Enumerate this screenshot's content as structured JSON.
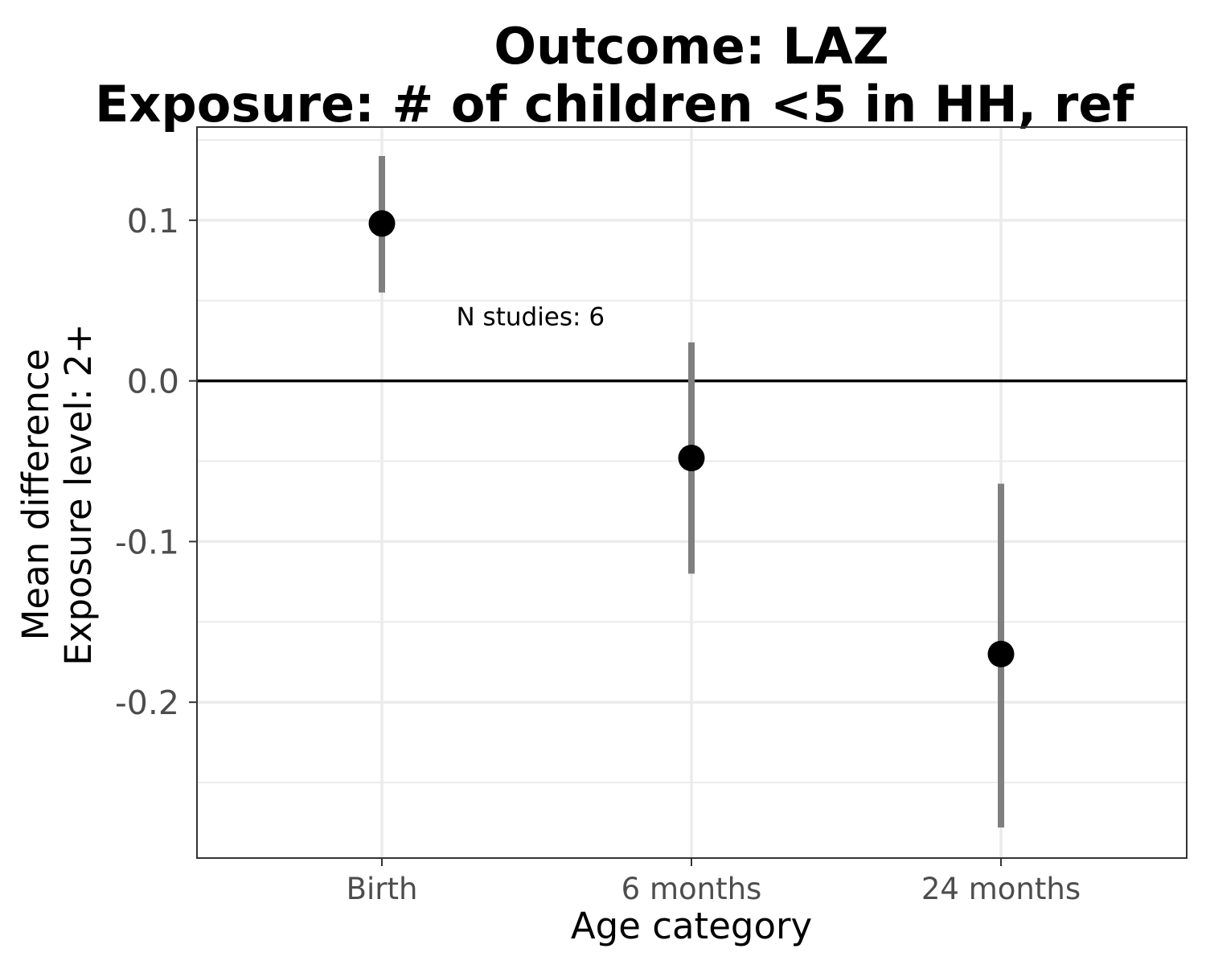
{
  "chart_data": {
    "type": "scatter",
    "title_lines": [
      "Outcome: LAZ",
      "Exposure: # of children <5 in HH, ref"
    ],
    "xlabel": "Age category",
    "ylabel_lines": [
      "Mean difference",
      "Exposure level: 2+"
    ],
    "categories": [
      "Birth",
      "6 months",
      "24 months"
    ],
    "estimates": [
      0.098,
      -0.048,
      -0.17
    ],
    "ci_lower": [
      0.055,
      -0.12,
      -0.278
    ],
    "ci_upper": [
      0.14,
      0.024,
      -0.064
    ],
    "yticks": [
      0.1,
      0.0,
      -0.1,
      -0.2
    ],
    "ytick_labels": [
      "0.1",
      "0.0",
      "-0.1",
      "-0.2"
    ],
    "ylim": [
      -0.297,
      0.158
    ],
    "reference_line": 0,
    "annotation": "N studies: 6",
    "annotation_position": {
      "x": 1.48,
      "y": 0.04
    },
    "grid": true,
    "colors": {
      "point": "#000000",
      "ci": "#7f7f7f",
      "grid": "#ebebeb",
      "panel_border": "#333333",
      "reference_line": "#000000"
    }
  }
}
